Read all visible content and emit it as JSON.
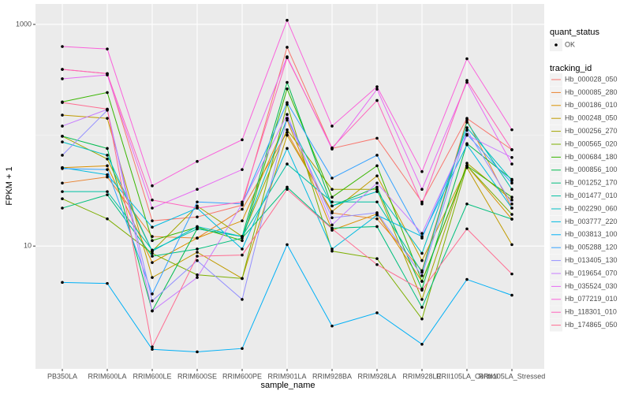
{
  "chart_data": {
    "type": "line",
    "log_scale": true,
    "grid": true,
    "x_label": "sample_name",
    "y_label": "FPKM + 1",
    "categories": [
      "PB350LA",
      "RRIM600LA",
      "RRIM600LE",
      "RRIM600SE",
      "RRIM600PE",
      "RRIM901LA",
      "RRIM928BA",
      "RRIM928LA",
      "RRIM928LE",
      "RRII105LA_Control",
      "RRII105LA_Stressed"
    ],
    "ylim": [
      0.78,
      1530
    ],
    "yticks": [
      10,
      1000
    ],
    "y_minor_gridlines": [
      100
    ],
    "point_legend": {
      "title": "quant_status",
      "labels": [
        "OK"
      ],
      "color": "#000000"
    },
    "legend_title": "tracking_id",
    "series": [
      {
        "name": "Hb_000028_050",
        "color": "#F8766D",
        "values": [
          393,
          360,
          16.9,
          18.3,
          23.4,
          622,
          76,
          94,
          25,
          142,
          74
        ]
      },
      {
        "name": "Hb_000085_280",
        "color": "#EA8331",
        "values": [
          37,
          42,
          12.2,
          11.8,
          21.5,
          106,
          19.9,
          17.6,
          6.0,
          137,
          22
        ]
      },
      {
        "name": "Hb_000186_010",
        "color": "#D89000",
        "values": [
          51,
          53,
          7.1,
          11.8,
          16.9,
          137,
          13.9,
          19.5,
          4.8,
          53,
          17.5
        ]
      },
      {
        "name": "Hb_000248_050",
        "color": "#C09B00",
        "values": [
          152,
          142,
          5.2,
          8.8,
          5.1,
          100,
          20.5,
          43,
          7.4,
          51,
          10.3
        ]
      },
      {
        "name": "Hb_000256_270",
        "color": "#A3A500",
        "values": [
          98,
          61,
          9.0,
          23,
          12.2,
          112,
          32.5,
          32.5,
          3.3,
          56,
          26
        ]
      },
      {
        "name": "Hb_000565_020",
        "color": "#7CAE00",
        "values": [
          26.7,
          17.6,
          8.6,
          5.5,
          5.1,
          190,
          9.0,
          7.7,
          2.2,
          53,
          19.3
        ]
      },
      {
        "name": "Hb_000684_180",
        "color": "#39B600",
        "values": [
          200,
          243,
          11.2,
          14.8,
          11.2,
          262,
          27.6,
          53,
          4.8,
          53,
          27.6
        ]
      },
      {
        "name": "Hb_000856_100",
        "color": "#00BB4E",
        "values": [
          98,
          76,
          2.6,
          14.3,
          12.2,
          300,
          23,
          34,
          4.1,
          84,
          40
        ]
      },
      {
        "name": "Hb_001252_170",
        "color": "#00BF7D",
        "values": [
          22,
          29,
          8.1,
          9.4,
          11.8,
          34,
          14.5,
          15,
          2.8,
          24,
          17.5
        ]
      },
      {
        "name": "Hb_001477_010",
        "color": "#00C1A3",
        "values": [
          31,
          31,
          9.2,
          14.3,
          12.2,
          55,
          25,
          25,
          5.8,
          131,
          32.5
        ]
      },
      {
        "name": "Hb_002290_060",
        "color": "#00BFC4",
        "values": [
          87,
          66,
          9.0,
          15,
          12.2,
          142,
          23,
          31,
          8.6,
          117,
          39
        ]
      },
      {
        "name": "Hb_003777_220",
        "color": "#00BAE0",
        "values": [
          51,
          44,
          14.8,
          22,
          9.4,
          76,
          9.4,
          19,
          12.2,
          82,
          22
        ]
      },
      {
        "name": "Hb_003813_100",
        "color": "#00B0F6",
        "values": [
          4.7,
          4.6,
          1.17,
          1.11,
          1.19,
          10.3,
          1.9,
          2.5,
          1.3,
          5.0,
          3.6
        ]
      },
      {
        "name": "Hb_005288_120",
        "color": "#35A2FF",
        "values": [
          50,
          49,
          3.7,
          25,
          24,
          197,
          41,
          66,
          11.8,
          102,
          37
        ]
      },
      {
        "name": "Hb_013405_130",
        "color": "#9590FF",
        "values": [
          66,
          168,
          3.2,
          7.4,
          3.3,
          142,
          18,
          20,
          5.4,
          111,
          24
        ]
      },
      {
        "name": "Hb_019654_070",
        "color": "#C77CFF",
        "values": [
          121,
          171,
          2.6,
          5.2,
          24,
          154,
          15.5,
          37,
          13,
          100,
          63
        ]
      },
      {
        "name": "Hb_035524_030",
        "color": "#E76BF3",
        "values": [
          323,
          350,
          22,
          32.5,
          49,
          510,
          75,
          260,
          32.5,
          300,
          55
        ]
      },
      {
        "name": "Hb_077219_010",
        "color": "#FA62DB",
        "values": [
          632,
          600,
          35,
          58,
          91,
          1090,
          121,
          274,
          47,
          490,
          112
        ]
      },
      {
        "name": "Hb_118301_010",
        "color": "#FF62BC",
        "values": [
          393,
          360,
          26,
          22,
          25,
          500,
          77,
          206,
          24,
          312,
          74
        ]
      },
      {
        "name": "Hb_174865_050",
        "color": "#FF6C91",
        "values": [
          197,
          172,
          1.23,
          8.1,
          8.3,
          32.5,
          14.3,
          6.8,
          4.0,
          14.3,
          5.6
        ]
      }
    ]
  }
}
